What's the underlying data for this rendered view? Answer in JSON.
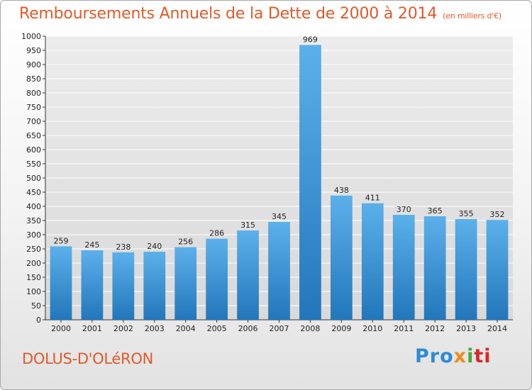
{
  "title": "Remboursements Annuels de la Dette de 2000 à 2014",
  "unit": "(en milliers d'€)",
  "commune": "DOLUS-D'OLéRON",
  "brand": {
    "p1": "Pro",
    "p2": "x",
    "p3": "i",
    "p4": "ti"
  },
  "colors": {
    "bar_top": "#5cb0ea",
    "bar_bottom": "#2277bb",
    "title": "#e05a2a",
    "grid": "#ffffff"
  },
  "chart_data": {
    "type": "bar",
    "categories": [
      "2000",
      "2001",
      "2002",
      "2003",
      "2004",
      "2005",
      "2006",
      "2007",
      "2008",
      "2009",
      "2010",
      "2011",
      "2012",
      "2013",
      "2014"
    ],
    "values": [
      259,
      245,
      238,
      240,
      256,
      286,
      315,
      345,
      969,
      438,
      411,
      370,
      365,
      355,
      352
    ],
    "ylim": [
      0,
      1000
    ],
    "ytick_step": 50,
    "grid": true,
    "xlabel": "",
    "ylabel": ""
  }
}
